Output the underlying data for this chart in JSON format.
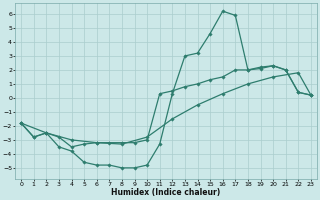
{
  "xlabel": "Humidex (Indice chaleur)",
  "xlim": [
    -0.5,
    23.5
  ],
  "ylim": [
    -5.8,
    6.8
  ],
  "xticks": [
    0,
    1,
    2,
    3,
    4,
    5,
    6,
    7,
    8,
    9,
    10,
    11,
    12,
    13,
    14,
    15,
    16,
    17,
    18,
    19,
    20,
    21,
    22,
    23
  ],
  "yticks": [
    -5,
    -4,
    -3,
    -2,
    -1,
    0,
    1,
    2,
    3,
    4,
    5,
    6
  ],
  "background_color": "#cce8e8",
  "grid_color": "#aacece",
  "line_color": "#2e7d6e",
  "curve1_x": [
    0,
    1,
    2,
    3,
    4,
    5,
    6,
    7,
    8,
    9,
    10,
    11,
    12,
    13,
    14,
    15,
    16,
    17,
    18,
    19,
    20,
    21,
    22,
    23
  ],
  "curve1_y": [
    -1.8,
    -2.8,
    -2.5,
    -3.5,
    -3.8,
    -4.6,
    -4.8,
    -4.8,
    -5.0,
    -5.0,
    -4.8,
    -3.3,
    0.3,
    3.0,
    3.2,
    4.6,
    6.2,
    5.9,
    2.0,
    2.1,
    2.3,
    2.0,
    0.4,
    0.2
  ],
  "curve2_x": [
    0,
    1,
    2,
    3,
    4,
    5,
    6,
    7,
    8,
    9,
    10,
    11,
    12,
    13,
    14,
    15,
    16,
    17,
    18,
    19,
    20,
    21,
    22,
    23
  ],
  "curve2_y": [
    -1.8,
    -2.8,
    -2.5,
    -2.8,
    -3.5,
    -3.3,
    -3.2,
    -3.2,
    -3.2,
    -3.2,
    -3.0,
    0.3,
    0.5,
    0.8,
    1.0,
    1.3,
    1.5,
    2.0,
    2.0,
    2.2,
    2.3,
    2.0,
    0.4,
    0.2
  ],
  "curve3_x": [
    0,
    2,
    4,
    6,
    8,
    10,
    12,
    14,
    16,
    18,
    20,
    22,
    23
  ],
  "curve3_y": [
    -1.8,
    -2.5,
    -3.0,
    -3.2,
    -3.3,
    -2.8,
    -1.5,
    -0.5,
    0.3,
    1.0,
    1.5,
    1.8,
    0.2
  ]
}
